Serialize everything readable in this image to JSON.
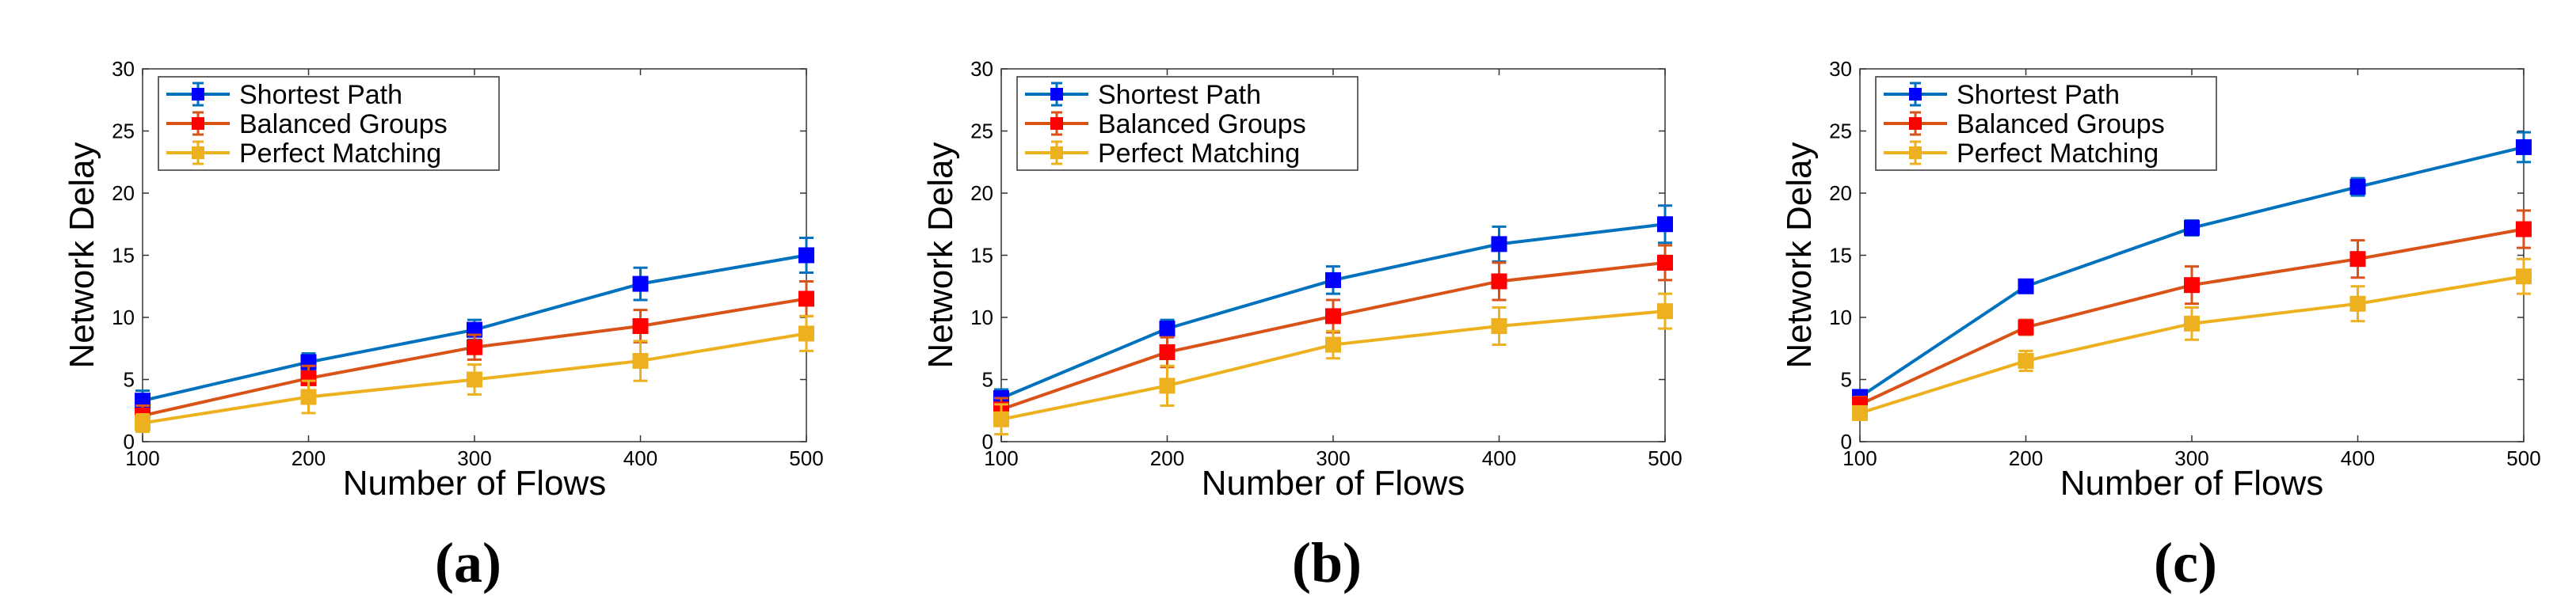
{
  "figure": {
    "panels": [
      {
        "label": "(a)"
      },
      {
        "label": "(b)"
      },
      {
        "label": "(c)"
      }
    ]
  },
  "chart_data": [
    {
      "type": "line",
      "panel_label": "(a)",
      "title": "",
      "xlabel": "Number of Flows",
      "ylabel": "Network Delay",
      "xlim": [
        100,
        500
      ],
      "ylim": [
        0,
        30
      ],
      "xticks": [
        100,
        200,
        300,
        400,
        500
      ],
      "yticks": [
        0,
        5,
        10,
        15,
        20,
        25,
        30
      ],
      "grid": false,
      "legend_position": "top-left",
      "x": [
        100,
        200,
        300,
        400,
        500
      ],
      "series": [
        {
          "name": "Shortest Path",
          "color": "#0072bd",
          "marker_color": "#0000ff",
          "values": [
            3.3,
            6.4,
            9.0,
            12.7,
            15.0
          ],
          "errors": [
            0.8,
            0.7,
            0.8,
            1.3,
            1.4
          ]
        },
        {
          "name": "Balanced Groups",
          "color": "#d95319",
          "marker_color": "#ff0000",
          "values": [
            2.1,
            5.1,
            7.6,
            9.3,
            11.5
          ],
          "errors": [
            0.8,
            1.0,
            1.0,
            1.3,
            1.4
          ]
        },
        {
          "name": "Perfect Matching",
          "color": "#edb120",
          "marker_color": "#edb120",
          "values": [
            1.5,
            3.6,
            5.0,
            6.5,
            8.7
          ],
          "errors": [
            0.7,
            1.3,
            1.2,
            1.6,
            1.4
          ]
        }
      ]
    },
    {
      "type": "line",
      "panel_label": "(b)",
      "title": "",
      "xlabel": "Number of Flows",
      "ylabel": "Network Delay",
      "xlim": [
        100,
        500
      ],
      "ylim": [
        0,
        30
      ],
      "xticks": [
        100,
        200,
        300,
        400,
        500
      ],
      "yticks": [
        0,
        5,
        10,
        15,
        20,
        25,
        30
      ],
      "grid": false,
      "legend_position": "top-left",
      "x": [
        100,
        200,
        300,
        400,
        500
      ],
      "series": [
        {
          "name": "Shortest Path",
          "color": "#0072bd",
          "marker_color": "#0000ff",
          "values": [
            3.5,
            9.1,
            13.0,
            15.9,
            17.5
          ],
          "errors": [
            0.7,
            0.7,
            1.1,
            1.4,
            1.5
          ]
        },
        {
          "name": "Balanced Groups",
          "color": "#d95319",
          "marker_color": "#ff0000",
          "values": [
            2.6,
            7.2,
            10.1,
            12.9,
            14.4
          ],
          "errors": [
            0.9,
            1.2,
            1.3,
            1.5,
            1.4
          ]
        },
        {
          "name": "Perfect Matching",
          "color": "#edb120",
          "marker_color": "#edb120",
          "values": [
            1.8,
            4.5,
            7.8,
            9.3,
            10.5
          ],
          "errors": [
            1.2,
            1.6,
            1.1,
            1.5,
            1.4
          ]
        }
      ]
    },
    {
      "type": "line",
      "panel_label": "(c)",
      "title": "",
      "xlabel": "Number of Flows",
      "ylabel": "Network Delay",
      "xlim": [
        100,
        500
      ],
      "ylim": [
        0,
        30
      ],
      "xticks": [
        100,
        200,
        300,
        400,
        500
      ],
      "yticks": [
        0,
        5,
        10,
        15,
        20,
        25,
        30
      ],
      "grid": false,
      "legend_position": "top-left",
      "x": [
        100,
        200,
        300,
        400,
        500
      ],
      "series": [
        {
          "name": "Shortest Path",
          "color": "#0072bd",
          "marker_color": "#0000ff",
          "values": [
            3.6,
            12.5,
            17.2,
            20.5,
            23.7
          ],
          "errors": [
            0.5,
            0.5,
            0.6,
            0.7,
            1.2
          ]
        },
        {
          "name": "Balanced Groups",
          "color": "#d95319",
          "marker_color": "#ff0000",
          "values": [
            3.0,
            9.2,
            12.6,
            14.7,
            17.1
          ],
          "errors": [
            0.6,
            0.6,
            1.5,
            1.5,
            1.5
          ]
        },
        {
          "name": "Perfect Matching",
          "color": "#edb120",
          "marker_color": "#edb120",
          "values": [
            2.3,
            6.5,
            9.5,
            11.1,
            13.3
          ],
          "errors": [
            0.5,
            0.8,
            1.3,
            1.4,
            1.4
          ]
        }
      ]
    }
  ]
}
